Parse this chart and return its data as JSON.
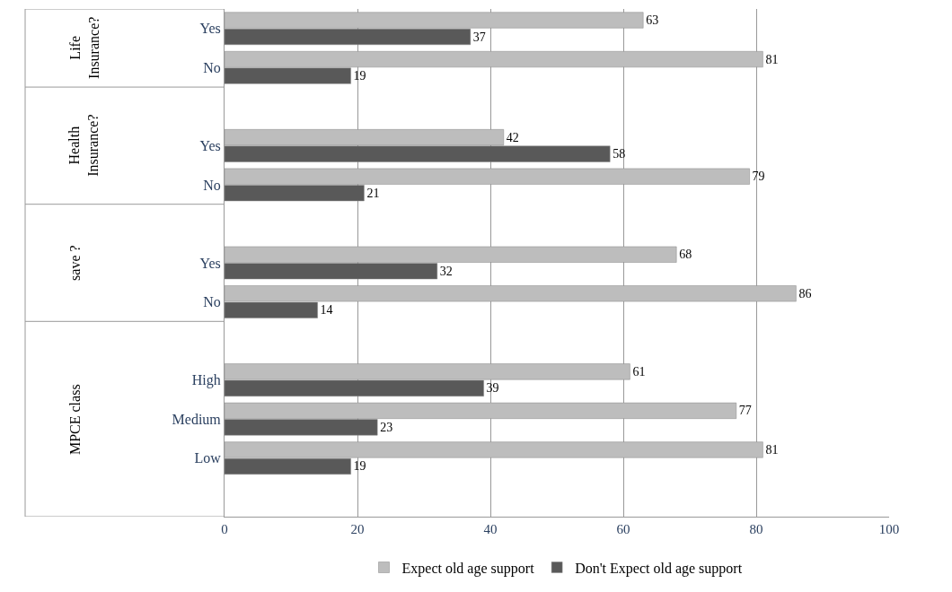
{
  "chart_data": {
    "type": "bar",
    "orientation": "horizontal",
    "categories": [
      "Yes",
      "No",
      null,
      "Yes",
      "No",
      null,
      "Yes",
      "No",
      null,
      "High",
      "Medium",
      "Low",
      null
    ],
    "series": [
      {
        "name": "Expect old age support",
        "color": "#bdbdbd",
        "values": [
          63,
          81,
          null,
          42,
          79,
          null,
          68,
          86,
          null,
          61,
          77,
          81,
          null
        ]
      },
      {
        "name": "Don't Expect old age support",
        "color": "#595959",
        "values": [
          37,
          19,
          null,
          58,
          21,
          null,
          32,
          14,
          null,
          39,
          23,
          19,
          null
        ]
      }
    ],
    "annotations": [
      "Life Insurance?",
      "Health Insurance?",
      "save ?",
      "MPCE class"
    ],
    "xlim": [
      0,
      100
    ],
    "xticks": [
      0,
      20,
      40,
      60,
      80,
      100
    ],
    "grid": "x",
    "legend": "bottom",
    "data_labels": true
  }
}
